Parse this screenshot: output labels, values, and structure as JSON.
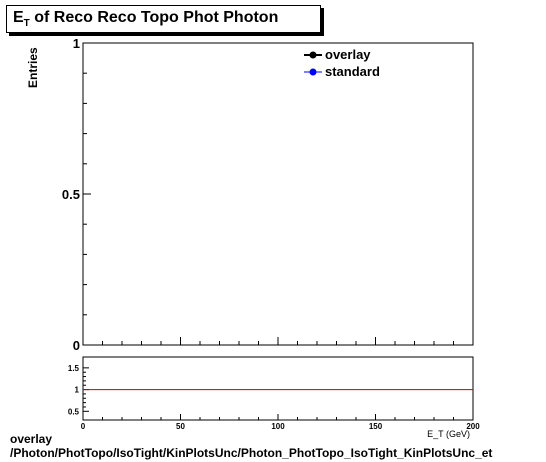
{
  "title": {
    "prefix": "E",
    "sub": "T",
    "rest": " of Reco Reco Topo Phot Photon"
  },
  "chart_data": [
    {
      "type": "line",
      "ylabel": "Entries",
      "ylim": [
        0,
        1
      ],
      "yticks": [
        "0",
        "0.5",
        "1"
      ],
      "legend": {
        "placement": "top-right"
      },
      "series": [
        {
          "name": "overlay",
          "color": "#000000",
          "values": []
        },
        {
          "name": "standard",
          "color": "#0000ff",
          "values": []
        }
      ]
    },
    {
      "type": "line",
      "xlabel": "E_T (GeV)",
      "xlim": [
        0,
        200
      ],
      "ylim": [
        0.3,
        1.75
      ],
      "xticks": [
        "0",
        "50",
        "100",
        "150",
        "200"
      ],
      "yticks": [
        "0.5",
        "1",
        "1.5"
      ],
      "reference_line": {
        "y": 1,
        "color": "#cc0000"
      }
    }
  ],
  "footer": {
    "line1": "overlay",
    "line2": "/Photon/PhotTopo/IsoTight/KinPlotsUnc/Photon_PhotTopo_IsoTight_KinPlotsUnc_et"
  }
}
